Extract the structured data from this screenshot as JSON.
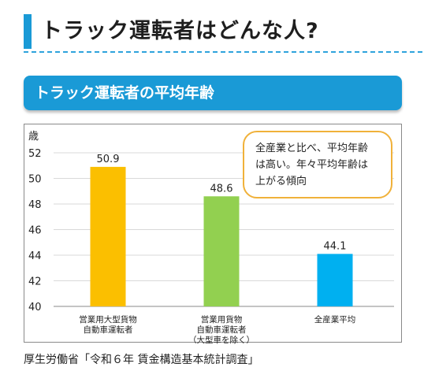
{
  "header": {
    "title": "トラック運転者はどんな人?"
  },
  "section": {
    "title": "トラック運転者の平均年齢"
  },
  "callout": {
    "lines": [
      "全産業と比べ、平均年齢",
      "は高い。年々平均年齢は",
      "上がる傾向"
    ]
  },
  "source": "厚生労働省「令和６年 賃金構造基本統計調査」",
  "colors": {
    "accent": "#1a9ad6",
    "callout_border": "#f0b13a"
  },
  "chart_data": {
    "type": "bar",
    "ylabel": "歳",
    "ylim": [
      40,
      52
    ],
    "yticks": [
      40,
      42,
      44,
      46,
      48,
      50,
      52
    ],
    "grid": true,
    "categories": [
      {
        "lines": [
          "営業用大型貨物",
          "自動車運転者"
        ]
      },
      {
        "lines": [
          "営業用貨物",
          "自動車運転者",
          "（大型車を除く）"
        ]
      },
      {
        "lines": [
          "全産業平均"
        ]
      }
    ],
    "values": [
      50.9,
      48.6,
      44.1
    ],
    "value_labels": [
      "50.9",
      "48.6",
      "44.1"
    ],
    "colors": [
      "#fbbf00",
      "#92d050",
      "#00b0f0"
    ]
  }
}
